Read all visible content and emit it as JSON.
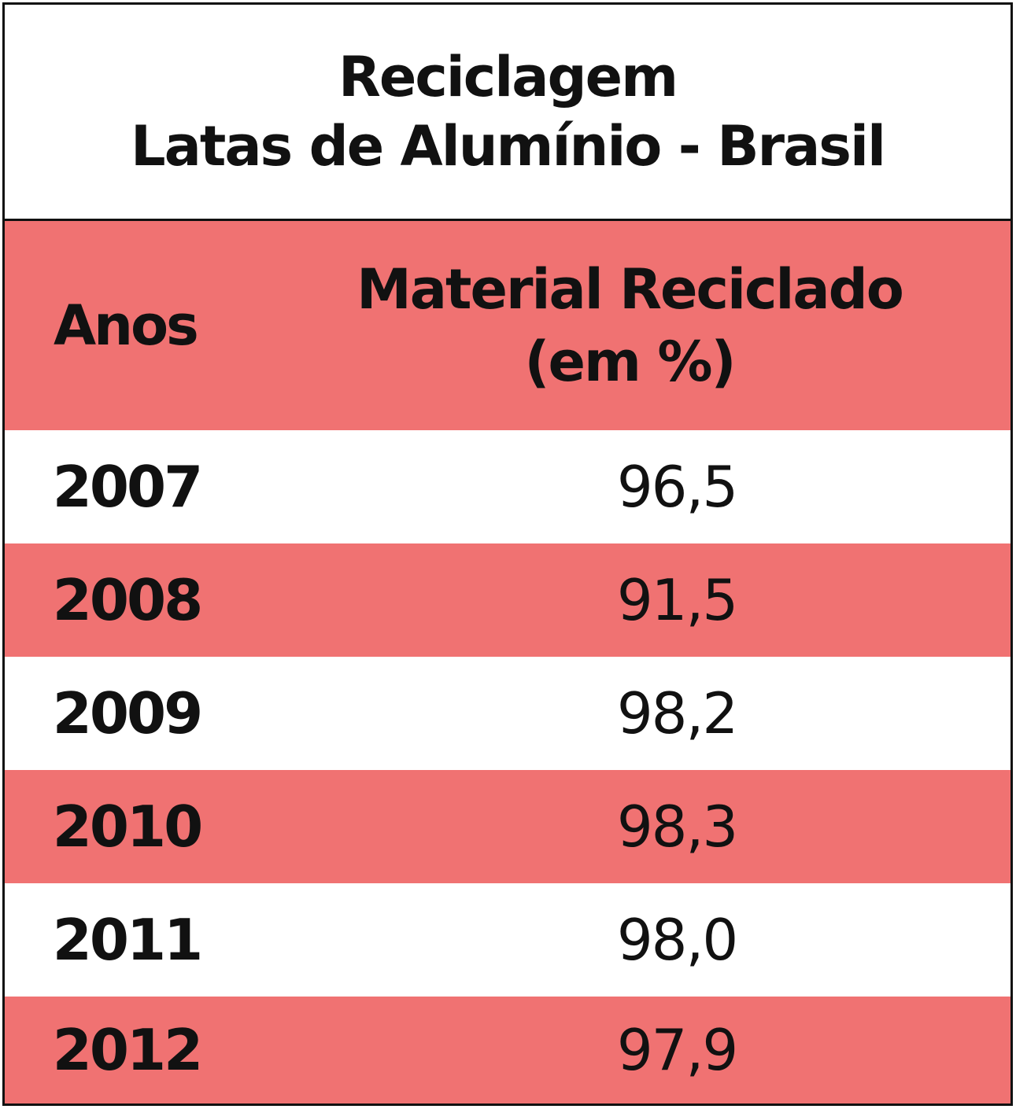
{
  "table": {
    "title_line1": "Reciclagem",
    "title_line2": "Latas de Alumínio - Brasil",
    "header_years": "Anos",
    "header_value_line1": "Material Reciclado",
    "header_value_line2": "(em %)",
    "rows": [
      {
        "year": "2007",
        "value": "96,5"
      },
      {
        "year": "2008",
        "value": "91,5"
      },
      {
        "year": "2009",
        "value": "98,2"
      },
      {
        "year": "2010",
        "value": "98,3"
      },
      {
        "year": "2011",
        "value": "98,0"
      },
      {
        "year": "2012",
        "value": "97,9"
      }
    ]
  },
  "colors": {
    "band": "#F07272",
    "plain": "#FFFFFF",
    "text": "#111111",
    "border": "#111111"
  },
  "chart_data": {
    "type": "table",
    "title": "Reciclagem Latas de Alumínio - Brasil",
    "columns": [
      "Anos",
      "Material Reciclado (em %)"
    ],
    "rows": [
      [
        "2007",
        96.5
      ],
      [
        "2008",
        91.5
      ],
      [
        "2009",
        98.2
      ],
      [
        "2010",
        98.3
      ],
      [
        "2011",
        98.0
      ],
      [
        "2012",
        97.9
      ]
    ]
  }
}
